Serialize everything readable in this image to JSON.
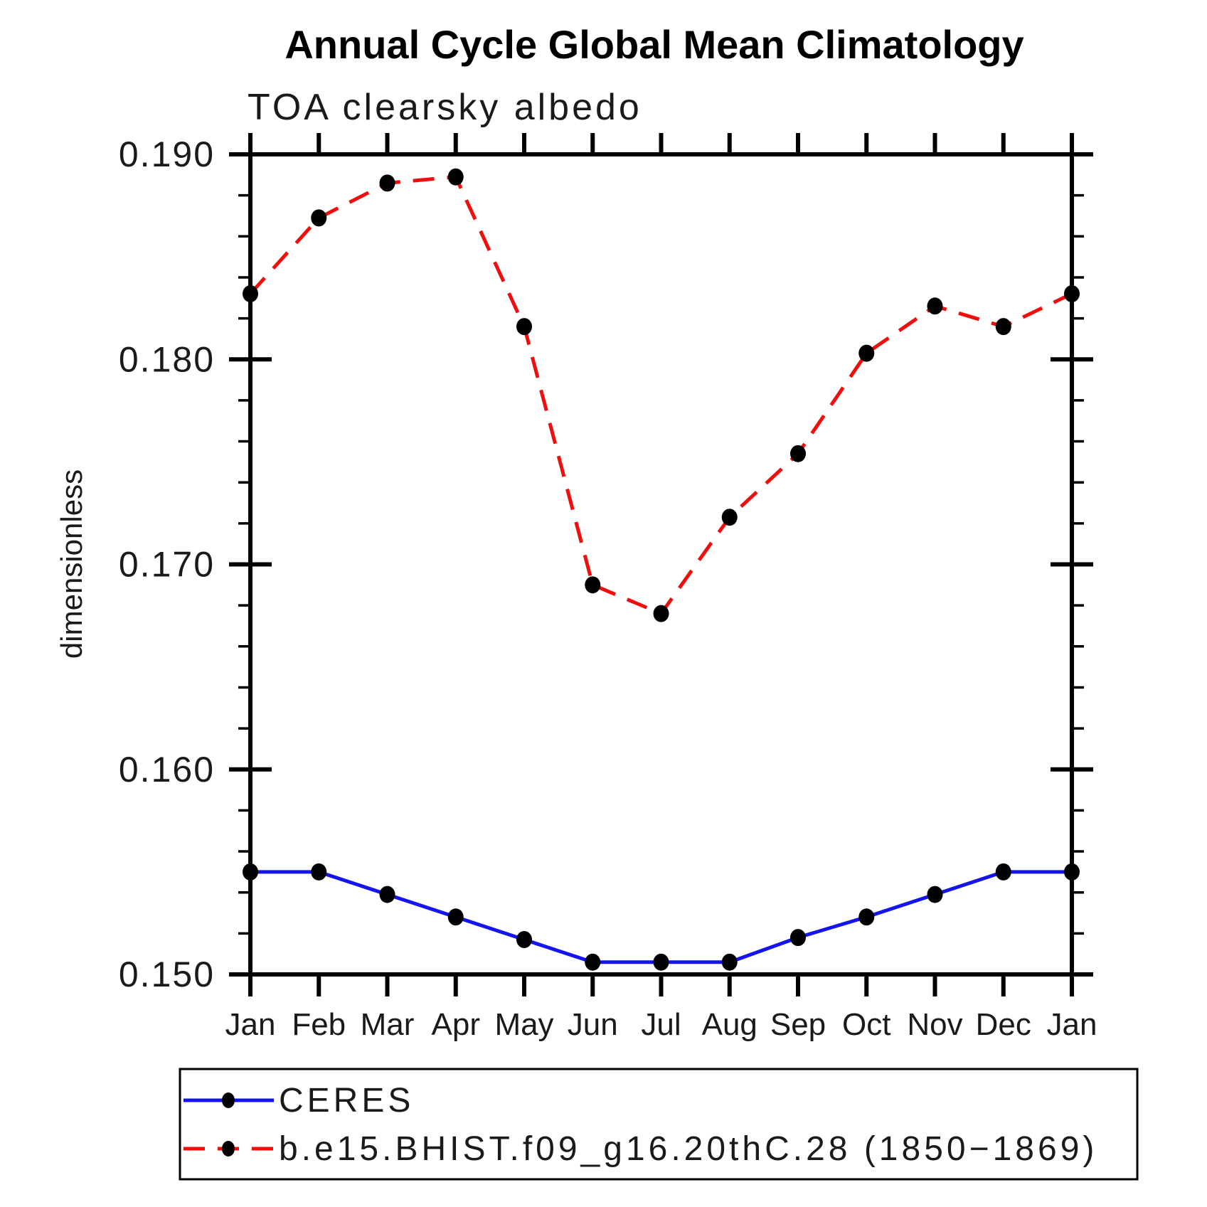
{
  "chart_data": {
    "type": "line",
    "title": "Annual Cycle Global Mean Climatology",
    "subtitle": "TOA clearsky albedo",
    "ylabel": "dimensionless",
    "xlabel": "",
    "categories": [
      "Jan",
      "Feb",
      "Mar",
      "Apr",
      "May",
      "Jun",
      "Jul",
      "Aug",
      "Sep",
      "Oct",
      "Nov",
      "Dec",
      "Jan"
    ],
    "ylim": [
      0.15,
      0.19
    ],
    "ytick_major": [
      0.15,
      0.16,
      0.17,
      0.18,
      0.19
    ],
    "ytick_labels": [
      "0.150",
      "0.160",
      "0.170",
      "0.180",
      "0.190"
    ],
    "ytick_minor_step": 0.002,
    "grid": false,
    "legend_position": "bottom",
    "marker_color": "#000000",
    "series": [
      {
        "name": "CERES",
        "color": "#1414F0",
        "style": "solid",
        "values": [
          0.155,
          0.155,
          0.1539,
          0.1528,
          0.1517,
          0.1506,
          0.1506,
          0.1506,
          0.1518,
          0.1528,
          0.1539,
          0.155,
          0.155
        ]
      },
      {
        "name": "b.e15.BHIST.f09_g16.20thC.28 (1850−1869)",
        "color": "#F20D0D",
        "style": "dashed",
        "values": [
          0.1832,
          0.1869,
          0.1886,
          0.1889,
          0.1816,
          0.169,
          0.1676,
          0.1723,
          0.1754,
          0.1803,
          0.1826,
          0.1816,
          0.1832
        ]
      }
    ]
  }
}
